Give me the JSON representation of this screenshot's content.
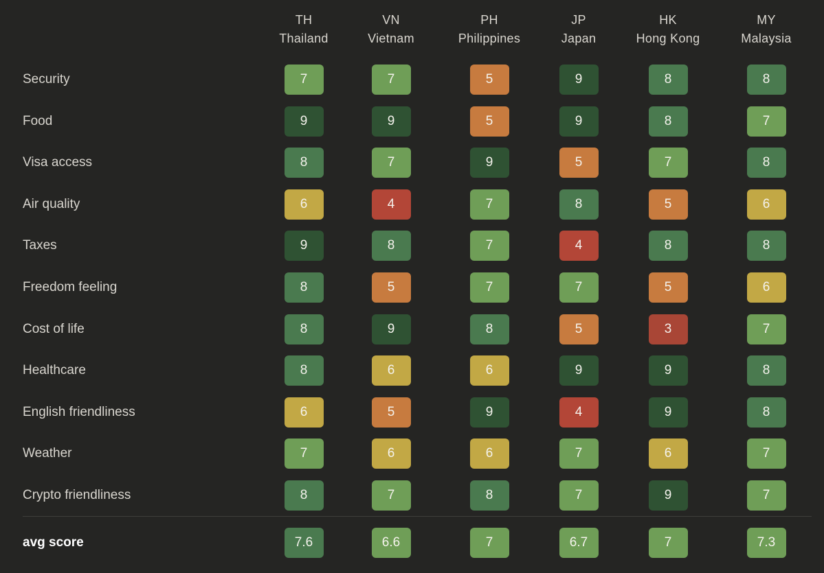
{
  "chart_data": {
    "type": "heatmap",
    "title": "",
    "columns": [
      {
        "code": "TH",
        "name": "Thailand"
      },
      {
        "code": "VN",
        "name": "Vietnam"
      },
      {
        "code": "PH",
        "name": "Philippines"
      },
      {
        "code": "JP",
        "name": "Japan"
      },
      {
        "code": "HK",
        "name": "Hong Kong"
      },
      {
        "code": "MY",
        "name": "Malaysia"
      }
    ],
    "rows": [
      {
        "label": "Security",
        "values": [
          7,
          7,
          5,
          9,
          8,
          8
        ]
      },
      {
        "label": "Food",
        "values": [
          9,
          9,
          5,
          9,
          8,
          7
        ]
      },
      {
        "label": "Visa access",
        "values": [
          8,
          7,
          9,
          5,
          7,
          8
        ]
      },
      {
        "label": "Air quality",
        "values": [
          6,
          4,
          7,
          8,
          5,
          6
        ]
      },
      {
        "label": "Taxes",
        "values": [
          9,
          8,
          7,
          4,
          8,
          8
        ]
      },
      {
        "label": "Freedom feeling",
        "values": [
          8,
          5,
          7,
          7,
          5,
          6
        ]
      },
      {
        "label": "Cost of life",
        "values": [
          8,
          9,
          8,
          5,
          3,
          7
        ]
      },
      {
        "label": "Healthcare",
        "values": [
          8,
          6,
          6,
          9,
          9,
          8
        ]
      },
      {
        "label": "English friendliness",
        "values": [
          6,
          5,
          9,
          4,
          9,
          8
        ]
      },
      {
        "label": "Weather",
        "values": [
          7,
          6,
          6,
          7,
          6,
          7
        ]
      },
      {
        "label": "Crypto friendliness",
        "values": [
          8,
          7,
          8,
          7,
          9,
          7
        ]
      }
    ],
    "avg": {
      "label": "avg score",
      "values": [
        "7.6",
        "6.6",
        "7",
        "6.7",
        "7",
        "7.3"
      ]
    },
    "color_scale": {
      "3": "#a94636",
      "4": "#b34637",
      "5": "#c77b3f",
      "6": "#c2a845",
      "7": "#6f9e57",
      "8": "#4a7a4f",
      "9": "#2f5233"
    }
  }
}
